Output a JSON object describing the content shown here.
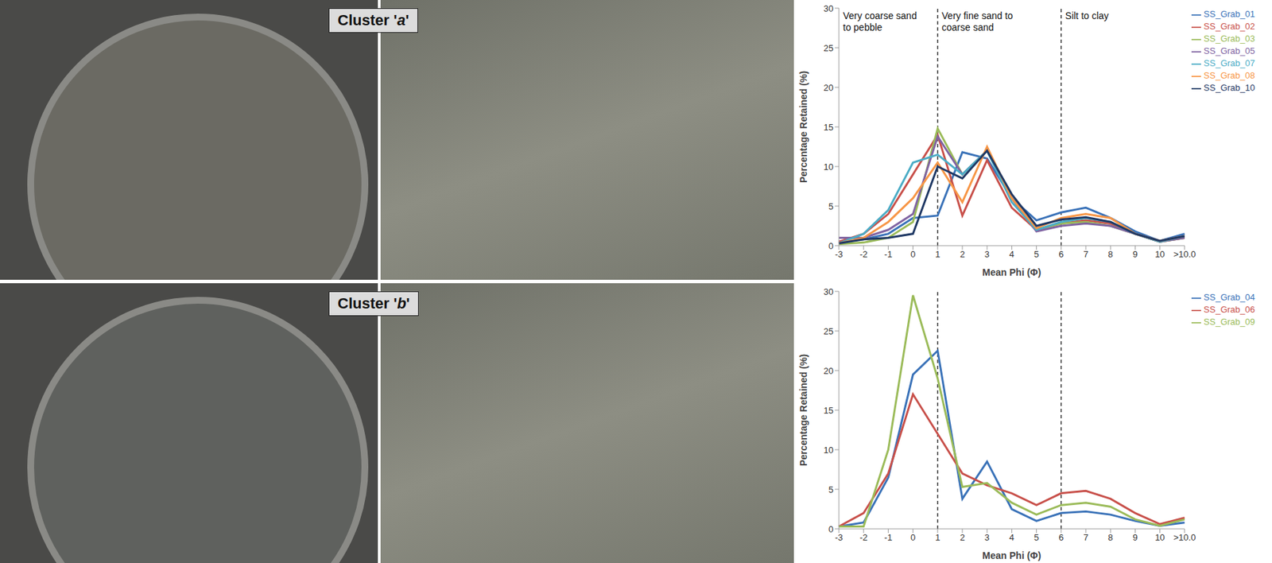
{
  "chart_data": [
    {
      "type": "line",
      "title": "Cluster 'a'",
      "x_label": "Mean Phi (Φ)",
      "y_label": "Percentage Retained (%)",
      "categories": [
        "-3",
        "-2",
        "-1",
        "0",
        "1",
        "2",
        "3",
        "4",
        "5",
        "6",
        "7",
        "8",
        "9",
        "10",
        ">10.0"
      ],
      "ylim": [
        0,
        30
      ],
      "yticks": [
        0,
        5,
        10,
        15,
        20,
        25,
        30
      ],
      "legend": "right",
      "regions": [
        {
          "label": "Very coarse sand to pebble",
          "from": "-3",
          "to": "1"
        },
        {
          "label": "Very fine sand to coarse sand",
          "from": "1",
          "to": "6"
        },
        {
          "label": "Silt to clay",
          "from": "6",
          "to": ">10.0"
        }
      ],
      "series": [
        {
          "name": "SS_Grab_01",
          "color": "#3a72b8",
          "values": [
            0.5,
            0.8,
            1.5,
            3.5,
            3.8,
            11.8,
            11,
            6,
            3.2,
            4.2,
            4.8,
            3.5,
            1.8,
            0.6,
            1.5
          ]
        },
        {
          "name": "SS_Grab_02",
          "color": "#c8504a",
          "values": [
            0.5,
            1.5,
            4,
            9,
            14,
            3.8,
            10.8,
            4.8,
            2,
            2.8,
            3.2,
            2.8,
            1.5,
            0.5,
            1
          ]
        },
        {
          "name": "SS_Grab_03",
          "color": "#9bbb59",
          "values": [
            0.2,
            0.4,
            1,
            3,
            14.8,
            9,
            12,
            6,
            2,
            2.8,
            3,
            2.5,
            1.5,
            0.5,
            1
          ]
        },
        {
          "name": "SS_Grab_05",
          "color": "#8064a2",
          "values": [
            1,
            1,
            2,
            4,
            13.8,
            9,
            12,
            6,
            1.8,
            2.5,
            2.8,
            2.5,
            1.5,
            0.5,
            1
          ]
        },
        {
          "name": "SS_Grab_07",
          "color": "#4bacc6",
          "values": [
            0.3,
            1.5,
            4.5,
            10.5,
            11.5,
            9,
            12,
            5.5,
            2,
            3,
            3.5,
            3,
            1.5,
            0.5,
            1.2
          ]
        },
        {
          "name": "SS_Grab_08",
          "color": "#f79646",
          "values": [
            0.3,
            1,
            3,
            6,
            10.5,
            5.5,
            12.5,
            6,
            2.2,
            3.5,
            4,
            3.5,
            1.5,
            0.6,
            1.2
          ]
        },
        {
          "name": "SS_Grab_10",
          "color": "#1f3864",
          "values": [
            0.3,
            0.8,
            1,
            1.5,
            10,
            8.5,
            12,
            6.5,
            2.5,
            3.3,
            3.6,
            3,
            1.5,
            0.6,
            1.2
          ]
        }
      ]
    },
    {
      "type": "line",
      "title": "Cluster 'b'",
      "x_label": "Mean Phi (Φ)",
      "y_label": "Percentage Retained (%)",
      "categories": [
        "-3",
        "-2",
        "-1",
        "0",
        "1",
        "2",
        "3",
        "4",
        "5",
        "6",
        "7",
        "8",
        "9",
        "10",
        ">10.0"
      ],
      "ylim": [
        0,
        30
      ],
      "yticks": [
        0,
        5,
        10,
        15,
        20,
        25,
        30
      ],
      "legend": "right",
      "dividers": [
        "1",
        "6"
      ],
      "series": [
        {
          "name": "SS_Grab_04",
          "color": "#3a72b8",
          "values": [
            0.3,
            0.8,
            6.5,
            19.5,
            22.5,
            3.8,
            8.5,
            2.5,
            1,
            2,
            2.2,
            1.8,
            1,
            0.4,
            0.8
          ]
        },
        {
          "name": "SS_Grab_06",
          "color": "#c8504a",
          "values": [
            0.3,
            2,
            7,
            17,
            12,
            7,
            5.5,
            4.5,
            3,
            4.5,
            4.8,
            3.8,
            2,
            0.6,
            1.4
          ]
        },
        {
          "name": "SS_Grab_09",
          "color": "#9bbb59",
          "values": [
            0.3,
            0.3,
            10,
            29.5,
            19,
            5.3,
            5.8,
            3.3,
            1.8,
            3,
            3.3,
            2.8,
            1.2,
            0.4,
            1.2
          ]
        }
      ]
    }
  ]
}
